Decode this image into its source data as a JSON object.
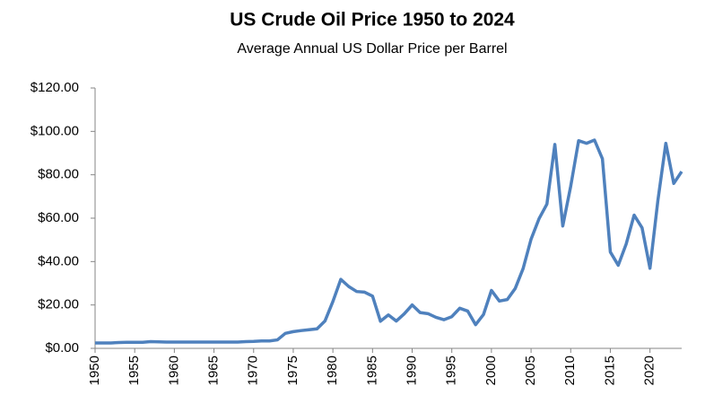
{
  "chart_data": {
    "type": "line",
    "title": "US Crude Oil Price 1950 to 2024",
    "subtitle": "Average Annual US Dollar Price per Barrel",
    "x": [
      1950,
      1951,
      1952,
      1953,
      1954,
      1955,
      1956,
      1957,
      1958,
      1959,
      1960,
      1961,
      1962,
      1963,
      1964,
      1965,
      1966,
      1967,
      1968,
      1969,
      1970,
      1971,
      1972,
      1973,
      1974,
      1975,
      1976,
      1977,
      1978,
      1979,
      1980,
      1981,
      1982,
      1983,
      1984,
      1985,
      1986,
      1987,
      1988,
      1989,
      1990,
      1991,
      1992,
      1993,
      1994,
      1995,
      1996,
      1997,
      1998,
      1999,
      2000,
      2001,
      2002,
      2003,
      2004,
      2005,
      2006,
      2007,
      2008,
      2009,
      2010,
      2011,
      2012,
      2013,
      2014,
      2015,
      2016,
      2017,
      2018,
      2019,
      2020,
      2021,
      2022,
      2023,
      2024
    ],
    "series": [
      {
        "name": "US Crude Oil Price",
        "color": "#4f81bd",
        "values": [
          2.5,
          2.5,
          2.5,
          2.7,
          2.8,
          2.8,
          2.8,
          3.1,
          3.0,
          2.9,
          2.9,
          2.9,
          2.9,
          2.9,
          2.9,
          2.9,
          2.9,
          2.9,
          2.9,
          3.1,
          3.2,
          3.4,
          3.4,
          3.9,
          6.9,
          7.7,
          8.2,
          8.6,
          9.0,
          12.6,
          21.6,
          31.8,
          28.5,
          26.2,
          25.9,
          24.1,
          12.5,
          15.4,
          12.6,
          15.9,
          20.0,
          16.5,
          16.0,
          14.3,
          13.2,
          14.6,
          18.5,
          17.2,
          10.9,
          15.6,
          26.7,
          21.8,
          22.5,
          27.6,
          36.8,
          50.3,
          59.7,
          66.5,
          94.0,
          56.4,
          74.7,
          95.7,
          94.5,
          96.0,
          87.4,
          44.4,
          38.3,
          48.1,
          61.4,
          55.6,
          36.9,
          68.2,
          94.5,
          76.0,
          81.5
        ]
      }
    ],
    "xlim": [
      1950,
      2024
    ],
    "xticks": [
      1950,
      1955,
      1960,
      1965,
      1970,
      1975,
      1980,
      1985,
      1990,
      1995,
      2000,
      2005,
      2010,
      2015,
      2020
    ],
    "ylim": [
      0,
      120
    ],
    "yticks": [
      {
        "value": 0,
        "label": "$0.00"
      },
      {
        "value": 20,
        "label": "$20.00"
      },
      {
        "value": 40,
        "label": "$40.00"
      },
      {
        "value": 60,
        "label": "$60.00"
      },
      {
        "value": 80,
        "label": "$80.00"
      },
      {
        "value": 100,
        "label": "$100.00"
      },
      {
        "value": 120,
        "label": "$120.00"
      }
    ],
    "grid": false
  }
}
